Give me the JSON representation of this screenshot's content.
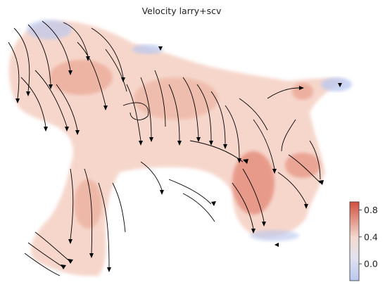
{
  "chart_data": {
    "type": "scatter",
    "title": "Velocity larry+scv",
    "xlabel": "",
    "ylabel": "",
    "overlay": "streamlines with arrowheads",
    "axes_visible": false,
    "grid": false,
    "colormap": "coolwarm",
    "colorbar": {
      "placement": "bottom-right",
      "range": [
        -0.25,
        0.92
      ],
      "ticks": [
        {
          "value": 0.8,
          "label": "0.8"
        },
        {
          "value": 0.4,
          "label": "0.4"
        },
        {
          "value": 0.0,
          "label": "0.0"
        }
      ],
      "color_low": "#b9c8f0",
      "color_mid": "#f3e6df",
      "color_high": "#d2503f"
    }
  }
}
